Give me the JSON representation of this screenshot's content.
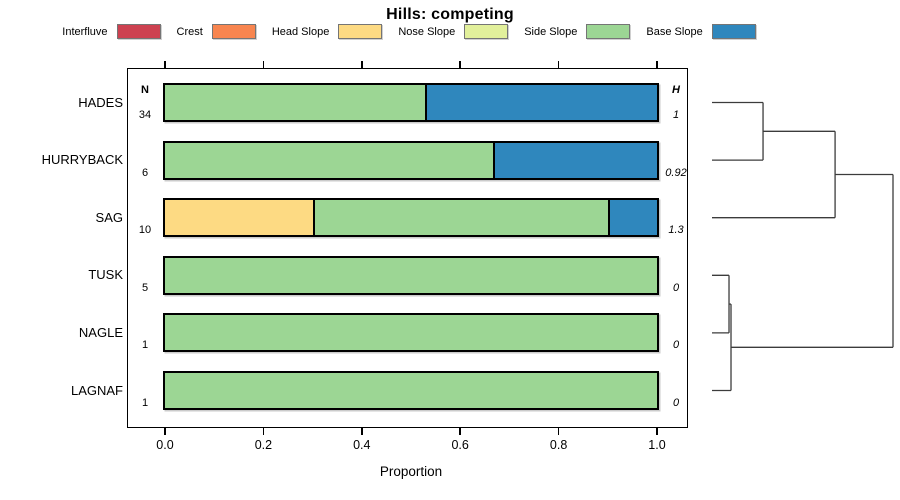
{
  "title": "Hills: competing",
  "legend": {
    "items": [
      {
        "label": "Interfluve",
        "color": "#CD4150"
      },
      {
        "label": "Crest",
        "color": "#F8854F"
      },
      {
        "label": "Head Slope",
        "color": "#FDDA83"
      },
      {
        "label": "Nose Slope",
        "color": "#E2F09B"
      },
      {
        "label": "Side Slope",
        "color": "#9CD694"
      },
      {
        "label": "Base Slope",
        "color": "#2F87BD"
      }
    ]
  },
  "chart_data": {
    "type": "bar",
    "orientation": "horizontal-stacked",
    "title": "Hills: competing",
    "xlabel": "Proportion",
    "xlim": [
      0.0,
      1.0
    ],
    "xticks": [
      {
        "value": 0.0,
        "label": "0.0"
      },
      {
        "value": 0.2,
        "label": "0.2"
      },
      {
        "value": 0.4,
        "label": "0.4"
      },
      {
        "value": 0.6,
        "label": "0.6"
      },
      {
        "value": 0.8,
        "label": "0.8"
      },
      {
        "value": 1.0,
        "label": "1.0"
      }
    ],
    "n_header": "N",
    "h_header": "H",
    "categories": [
      "HADES",
      "HURRYBACK",
      "SAG",
      "TUSK",
      "NAGLE",
      "LAGNAF"
    ],
    "rows": [
      {
        "label": "HADES",
        "n": "34",
        "h": "1",
        "segments": [
          {
            "class": "Side Slope",
            "value": 0.529
          },
          {
            "class": "Base Slope",
            "value": 0.471
          }
        ]
      },
      {
        "label": "HURRYBACK",
        "n": "6",
        "h": "0.92",
        "segments": [
          {
            "class": "Side Slope",
            "value": 0.667
          },
          {
            "class": "Base Slope",
            "value": 0.333
          }
        ]
      },
      {
        "label": "SAG",
        "n": "10",
        "h": "1.3",
        "segments": [
          {
            "class": "Head Slope",
            "value": 0.3
          },
          {
            "class": "Side Slope",
            "value": 0.6
          },
          {
            "class": "Base Slope",
            "value": 0.1
          }
        ]
      },
      {
        "label": "TUSK",
        "n": "5",
        "h": "0",
        "segments": [
          {
            "class": "Side Slope",
            "value": 1.0
          }
        ]
      },
      {
        "label": "NAGLE",
        "n": "1",
        "h": "0",
        "segments": [
          {
            "class": "Side Slope",
            "value": 1.0
          }
        ]
      },
      {
        "label": "LAGNAF",
        "n": "1",
        "h": "0",
        "segments": [
          {
            "class": "Side Slope",
            "value": 1.0
          }
        ]
      }
    ],
    "dendrogram": {
      "height": 1.0,
      "children": [
        {
          "height": 0.28,
          "note": "joins HADES+HURRYBACK at 0.28, then SAG at 0.68",
          "children": [
            {
              "height": 0.282,
              "children": [
                {
                  "leaf": "HADES"
                },
                {
                  "leaf": "HURRYBACK"
                }
              ]
            },
            {
              "leaf": "SAG"
            }
          ],
          "join_height": 0.68
        },
        {
          "height": 0.105,
          "children": [
            {
              "height": 0.094,
              "children": [
                {
                  "leaf": "TUSK"
                },
                {
                  "leaf": "NAGLE"
                }
              ]
            },
            {
              "leaf": "LAGNAF"
            }
          ],
          "join_height": 0.105
        }
      ]
    }
  },
  "class_colors": {
    "Interfluve": "#CD4150",
    "Crest": "#F8854F",
    "Head Slope": "#FDDA83",
    "Nose Slope": "#E2F09B",
    "Side Slope": "#9CD694",
    "Base Slope": "#2F87BD"
  }
}
